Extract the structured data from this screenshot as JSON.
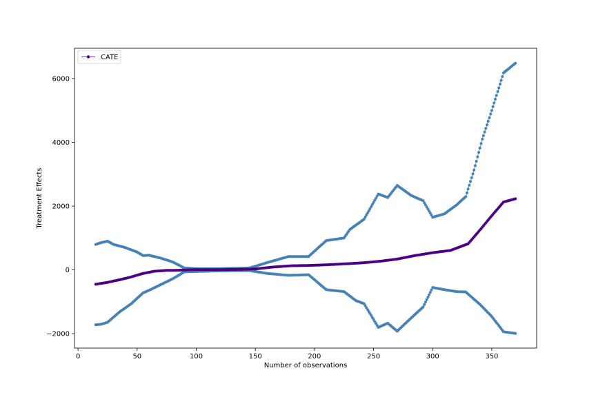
{
  "chart_data": {
    "type": "line",
    "xlabel": "Number of observations",
    "ylabel": "Treatment Effects",
    "xlim": [
      -3,
      388
    ],
    "ylim": [
      -2450,
      6950
    ],
    "xticks": [
      0,
      50,
      100,
      150,
      200,
      250,
      300,
      350
    ],
    "yticks": [
      -2000,
      0,
      2000,
      4000,
      6000
    ],
    "ytick_labels": [
      "−2000",
      "0",
      "2000",
      "4000",
      "6000"
    ],
    "grid": false,
    "legend": {
      "placement": "top-left",
      "entries": [
        "CATE"
      ]
    },
    "colors": {
      "cate": "#4b0082",
      "bounds": "#4682b4"
    },
    "series": [
      {
        "name": "CATE",
        "role": "estimate",
        "points": [
          [
            15,
            -450
          ],
          [
            25,
            -390
          ],
          [
            35,
            -310
          ],
          [
            45,
            -220
          ],
          [
            55,
            -110
          ],
          [
            65,
            -40
          ],
          [
            75,
            -15
          ],
          [
            85,
            -10
          ],
          [
            95,
            5
          ],
          [
            105,
            10
          ],
          [
            120,
            10
          ],
          [
            135,
            15
          ],
          [
            150,
            30
          ],
          [
            165,
            90
          ],
          [
            180,
            130
          ],
          [
            195,
            140
          ],
          [
            210,
            160
          ],
          [
            225,
            190
          ],
          [
            240,
            220
          ],
          [
            255,
            270
          ],
          [
            270,
            340
          ],
          [
            285,
            450
          ],
          [
            300,
            540
          ],
          [
            315,
            610
          ],
          [
            330,
            820
          ],
          [
            340,
            1250
          ],
          [
            350,
            1700
          ],
          [
            360,
            2130
          ],
          [
            370,
            2230
          ]
        ]
      },
      {
        "role": "upper-bound",
        "points": [
          [
            15,
            800
          ],
          [
            20,
            860
          ],
          [
            25,
            900
          ],
          [
            30,
            800
          ],
          [
            40,
            700
          ],
          [
            50,
            560
          ],
          [
            55,
            450
          ],
          [
            60,
            460
          ],
          [
            70,
            370
          ],
          [
            80,
            250
          ],
          [
            90,
            60
          ],
          [
            100,
            40
          ],
          [
            120,
            40
          ],
          [
            130,
            50
          ],
          [
            145,
            60
          ],
          [
            160,
            230
          ],
          [
            178,
            420
          ],
          [
            195,
            420
          ],
          [
            210,
            920
          ],
          [
            225,
            1000
          ],
          [
            230,
            1270
          ],
          [
            242,
            1590
          ],
          [
            254,
            2380
          ],
          [
            262,
            2270
          ],
          [
            270,
            2650
          ],
          [
            282,
            2330
          ],
          [
            292,
            2170
          ],
          [
            300,
            1650
          ],
          [
            310,
            1760
          ],
          [
            320,
            2030
          ],
          [
            328,
            2300
          ],
          [
            335,
            3130
          ],
          [
            342,
            4100
          ],
          [
            350,
            5000
          ],
          [
            360,
            6180
          ],
          [
            370,
            6480
          ]
        ]
      },
      {
        "role": "lower-bound",
        "points": [
          [
            15,
            -1720
          ],
          [
            20,
            -1700
          ],
          [
            25,
            -1640
          ],
          [
            35,
            -1320
          ],
          [
            45,
            -1060
          ],
          [
            55,
            -720
          ],
          [
            60,
            -640
          ],
          [
            70,
            -460
          ],
          [
            80,
            -280
          ],
          [
            90,
            -60
          ],
          [
            100,
            -50
          ],
          [
            120,
            -30
          ],
          [
            145,
            -20
          ],
          [
            160,
            -110
          ],
          [
            178,
            -170
          ],
          [
            195,
            -150
          ],
          [
            210,
            -620
          ],
          [
            225,
            -680
          ],
          [
            235,
            -960
          ],
          [
            242,
            -1060
          ],
          [
            254,
            -1800
          ],
          [
            262,
            -1670
          ],
          [
            270,
            -1920
          ],
          [
            282,
            -1500
          ],
          [
            292,
            -1160
          ],
          [
            300,
            -550
          ],
          [
            310,
            -620
          ],
          [
            320,
            -680
          ],
          [
            328,
            -690
          ],
          [
            340,
            -1080
          ],
          [
            350,
            -1460
          ],
          [
            360,
            -1940
          ],
          [
            370,
            -1990
          ]
        ]
      }
    ]
  }
}
